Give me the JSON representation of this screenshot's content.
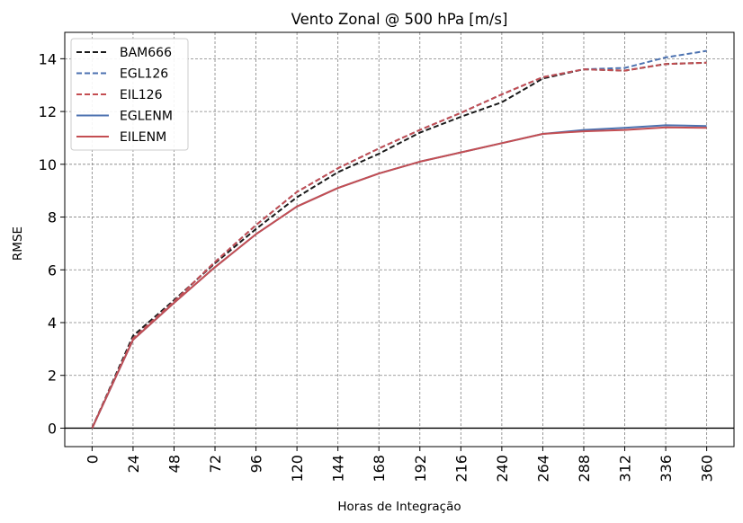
{
  "chart_data": {
    "type": "line",
    "title": "Vento Zonal @ 500 hPa [m/s]",
    "xlabel": "Horas de Integração",
    "ylabel": "RMSE",
    "x": [
      0,
      24,
      48,
      72,
      96,
      120,
      144,
      168,
      192,
      216,
      240,
      264,
      288,
      312,
      336,
      360
    ],
    "xticks": [
      "0",
      "24",
      "48",
      "72",
      "96",
      "120",
      "144",
      "168",
      "192",
      "216",
      "240",
      "264",
      "288",
      "312",
      "336",
      "360"
    ],
    "yticks": [
      "0",
      "2",
      "4",
      "6",
      "8",
      "10",
      "12",
      "14"
    ],
    "xlim": [
      -16,
      376
    ],
    "ylim": [
      -0.7,
      15.0
    ],
    "grid": true,
    "legend_position": "top-left",
    "series": [
      {
        "name": "BAM666",
        "color": "#1a1a1a",
        "dash": true,
        "values": [
          0,
          3.5,
          4.85,
          6.25,
          7.55,
          8.75,
          9.7,
          10.4,
          11.2,
          11.8,
          12.35,
          13.25,
          13.6,
          13.55,
          13.8,
          13.85
        ]
      },
      {
        "name": "EGL126",
        "color": "#4c72b0",
        "dash": true,
        "values": [
          0,
          3.4,
          4.8,
          6.3,
          7.7,
          8.95,
          9.85,
          10.6,
          11.3,
          11.95,
          12.65,
          13.3,
          13.6,
          13.65,
          14.05,
          14.3
        ]
      },
      {
        "name": "EIL126",
        "color": "#c44e52",
        "dash": true,
        "values": [
          0,
          3.4,
          4.8,
          6.3,
          7.7,
          8.95,
          9.85,
          10.6,
          11.3,
          11.95,
          12.65,
          13.3,
          13.6,
          13.55,
          13.8,
          13.85
        ]
      },
      {
        "name": "EGLENM",
        "color": "#4c72b0",
        "dash": false,
        "values": [
          0,
          3.35,
          4.75,
          6.1,
          7.35,
          8.4,
          9.1,
          9.65,
          10.1,
          10.45,
          10.8,
          11.15,
          11.3,
          11.38,
          11.48,
          11.45
        ]
      },
      {
        "name": "EILENM",
        "color": "#c44e52",
        "dash": false,
        "values": [
          0,
          3.35,
          4.75,
          6.1,
          7.35,
          8.4,
          9.1,
          9.65,
          10.1,
          10.45,
          10.8,
          11.15,
          11.25,
          11.3,
          11.4,
          11.38
        ]
      }
    ]
  }
}
